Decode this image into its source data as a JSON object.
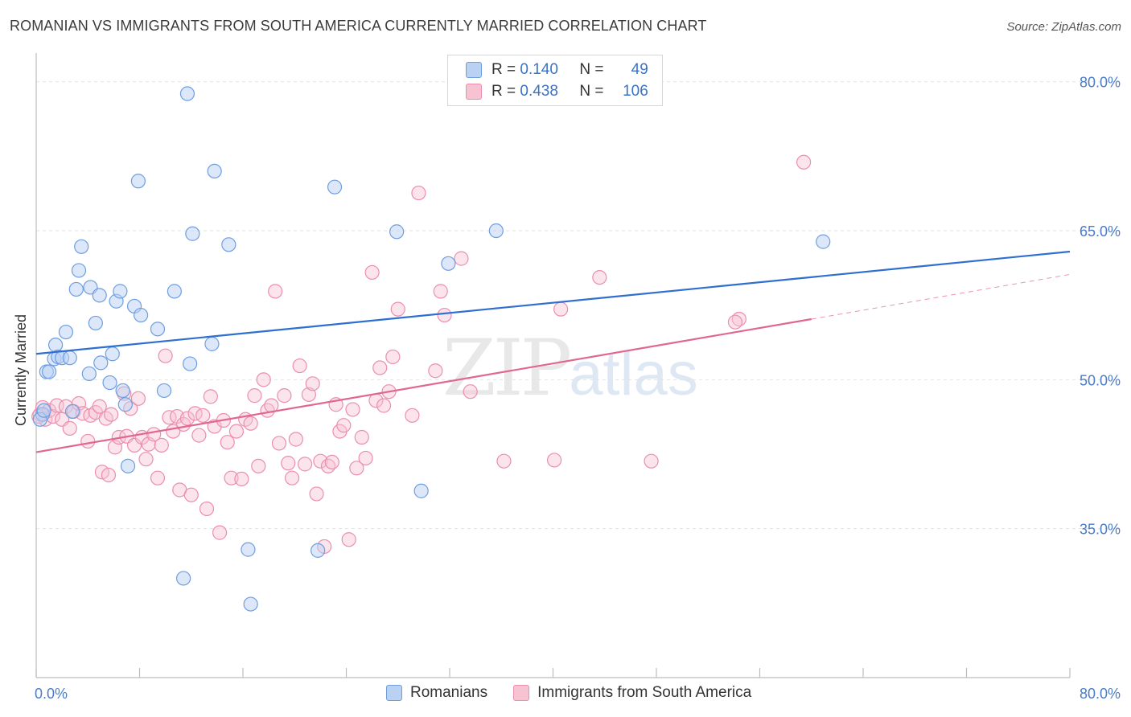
{
  "title": "ROMANIAN VS IMMIGRANTS FROM SOUTH AMERICA CURRENTLY MARRIED CORRELATION CHART",
  "source": "Source: ZipAtlas.com",
  "watermark": {
    "zip": "ZIP",
    "atlas": "atlas"
  },
  "legend": {
    "r_label": "R =",
    "n_label": "N =",
    "rows": [
      {
        "r": "0.140",
        "n": "49"
      },
      {
        "r": "0.438",
        "n": "106"
      }
    ]
  },
  "colors": {
    "blue_fill": "#b9d2f3",
    "blue_stroke": "#6f9ee0",
    "blue_line": "#2f6fd0",
    "pink_fill": "#f7c3d3",
    "pink_stroke": "#ea8fae",
    "pink_line": "#e06890",
    "tick_label": "#4a7cc9",
    "grid": "#e2e2e2"
  },
  "chart_data": {
    "type": "scatter",
    "title": "ROMANIAN VS IMMIGRANTS FROM SOUTH AMERICA CURRENTLY MARRIED CORRELATION CHART",
    "xlabel": "",
    "ylabel": "Currently Married",
    "xlim": [
      0,
      80
    ],
    "ylim": [
      20,
      82
    ],
    "x_tick_labels": [
      "0.0%",
      "80.0%"
    ],
    "y_ticks": [
      35,
      50,
      65,
      80
    ],
    "y_tick_labels": [
      "35.0%",
      "50.0%",
      "65.0%",
      "80.0%"
    ],
    "grid": true,
    "legend_position": "top-center",
    "series": [
      {
        "name": "Romanians",
        "color": "#6f9ee0",
        "trend": {
          "x0": 0,
          "y0": 52.6,
          "x1": 80,
          "y1": 62.9
        },
        "points": [
          [
            0.5,
            46.5
          ],
          [
            0.8,
            50.8
          ],
          [
            1.0,
            50.8
          ],
          [
            1.4,
            52.1
          ],
          [
            1.5,
            53.5
          ],
          [
            1.7,
            52.3
          ],
          [
            2.0,
            52.2
          ],
          [
            2.3,
            54.8
          ],
          [
            2.6,
            52.2
          ],
          [
            2.8,
            46.8
          ],
          [
            3.1,
            59.1
          ],
          [
            3.3,
            61.0
          ],
          [
            3.5,
            63.4
          ],
          [
            4.1,
            50.6
          ],
          [
            4.2,
            59.3
          ],
          [
            4.6,
            55.7
          ],
          [
            4.9,
            58.5
          ],
          [
            5.0,
            51.7
          ],
          [
            5.7,
            49.7
          ],
          [
            5.9,
            52.6
          ],
          [
            6.2,
            57.9
          ],
          [
            6.5,
            58.9
          ],
          [
            6.7,
            48.9
          ],
          [
            6.9,
            47.5
          ],
          [
            7.1,
            41.3
          ],
          [
            7.6,
            57.4
          ],
          [
            7.9,
            70.0
          ],
          [
            8.1,
            56.5
          ],
          [
            9.4,
            55.1
          ],
          [
            9.9,
            48.9
          ],
          [
            10.7,
            58.9
          ],
          [
            11.7,
            78.8
          ],
          [
            11.9,
            51.6
          ],
          [
            12.1,
            64.7
          ],
          [
            13.6,
            53.6
          ],
          [
            13.8,
            71.0
          ],
          [
            14.9,
            63.6
          ],
          [
            16.4,
            32.9
          ],
          [
            16.6,
            27.4
          ],
          [
            11.4,
            30.0
          ],
          [
            21.8,
            32.8
          ],
          [
            23.1,
            69.4
          ],
          [
            27.9,
            64.9
          ],
          [
            29.8,
            38.8
          ],
          [
            31.9,
            61.7
          ],
          [
            35.6,
            65.0
          ],
          [
            60.9,
            63.9
          ],
          [
            0.3,
            46.0
          ],
          [
            0.6,
            46.9
          ]
        ]
      },
      {
        "name": "Immigrants from South America",
        "color": "#ea8fae",
        "trend": {
          "x0": 0,
          "y0": 42.7,
          "x1": 60,
          "y1": 56.1
        },
        "trend_dashed": {
          "x0": 60,
          "y0": 56.1,
          "x1": 80,
          "y1": 60.6
        },
        "points": [
          [
            0.3,
            46.5
          ],
          [
            0.5,
            47.2
          ],
          [
            0.7,
            46.0
          ],
          [
            1.0,
            46.9
          ],
          [
            1.3,
            46.3
          ],
          [
            1.6,
            47.4
          ],
          [
            2.0,
            46.0
          ],
          [
            2.3,
            47.3
          ],
          [
            2.6,
            45.1
          ],
          [
            2.9,
            46.8
          ],
          [
            3.3,
            47.6
          ],
          [
            3.6,
            46.6
          ],
          [
            4.0,
            43.8
          ],
          [
            4.2,
            46.4
          ],
          [
            4.6,
            46.7
          ],
          [
            4.9,
            47.3
          ],
          [
            5.1,
            40.7
          ],
          [
            5.4,
            46.1
          ],
          [
            5.6,
            40.4
          ],
          [
            5.8,
            46.5
          ],
          [
            6.1,
            43.2
          ],
          [
            6.4,
            44.2
          ],
          [
            6.8,
            48.6
          ],
          [
            7.0,
            44.3
          ],
          [
            7.3,
            47.1
          ],
          [
            7.6,
            43.4
          ],
          [
            7.9,
            48.1
          ],
          [
            8.2,
            44.2
          ],
          [
            8.5,
            42.0
          ],
          [
            8.7,
            43.5
          ],
          [
            9.1,
            44.5
          ],
          [
            9.4,
            40.1
          ],
          [
            9.7,
            43.4
          ],
          [
            10.0,
            52.4
          ],
          [
            10.3,
            46.2
          ],
          [
            10.6,
            44.8
          ],
          [
            10.9,
            46.3
          ],
          [
            11.1,
            38.9
          ],
          [
            11.4,
            45.5
          ],
          [
            11.7,
            46.1
          ],
          [
            12.0,
            38.4
          ],
          [
            12.3,
            46.6
          ],
          [
            12.6,
            44.4
          ],
          [
            12.9,
            46.4
          ],
          [
            13.2,
            37.0
          ],
          [
            13.5,
            48.3
          ],
          [
            13.8,
            45.3
          ],
          [
            14.2,
            34.6
          ],
          [
            14.5,
            45.9
          ],
          [
            14.8,
            43.7
          ],
          [
            15.1,
            40.1
          ],
          [
            15.5,
            44.8
          ],
          [
            15.9,
            40.0
          ],
          [
            16.2,
            46.0
          ],
          [
            16.6,
            45.6
          ],
          [
            16.9,
            48.4
          ],
          [
            17.2,
            41.3
          ],
          [
            17.6,
            50.0
          ],
          [
            17.9,
            46.9
          ],
          [
            18.2,
            47.4
          ],
          [
            18.5,
            58.9
          ],
          [
            18.8,
            43.6
          ],
          [
            19.2,
            48.4
          ],
          [
            19.5,
            41.6
          ],
          [
            19.8,
            40.1
          ],
          [
            20.1,
            44.0
          ],
          [
            20.4,
            51.4
          ],
          [
            20.8,
            41.5
          ],
          [
            21.1,
            48.5
          ],
          [
            21.4,
            49.6
          ],
          [
            21.7,
            38.5
          ],
          [
            22.0,
            41.8
          ],
          [
            22.3,
            33.2
          ],
          [
            22.6,
            41.3
          ],
          [
            22.9,
            41.7
          ],
          [
            23.2,
            47.5
          ],
          [
            23.5,
            44.8
          ],
          [
            23.8,
            45.4
          ],
          [
            24.2,
            33.9
          ],
          [
            24.5,
            47.0
          ],
          [
            24.8,
            41.1
          ],
          [
            25.2,
            44.2
          ],
          [
            25.5,
            42.1
          ],
          [
            26.0,
            60.8
          ],
          [
            26.3,
            47.9
          ],
          [
            26.6,
            51.2
          ],
          [
            26.9,
            47.4
          ],
          [
            27.3,
            48.8
          ],
          [
            27.6,
            52.3
          ],
          [
            28.0,
            57.1
          ],
          [
            29.1,
            46.4
          ],
          [
            29.6,
            68.8
          ],
          [
            30.9,
            50.9
          ],
          [
            31.3,
            58.9
          ],
          [
            31.6,
            56.5
          ],
          [
            32.9,
            62.2
          ],
          [
            33.6,
            48.8
          ],
          [
            36.2,
            41.8
          ],
          [
            40.1,
            41.9
          ],
          [
            40.6,
            57.1
          ],
          [
            43.6,
            60.3
          ],
          [
            47.6,
            41.8
          ],
          [
            54.4,
            56.1
          ],
          [
            54.1,
            55.8
          ],
          [
            59.4,
            71.9
          ],
          [
            0.2,
            46.3
          ]
        ]
      }
    ]
  }
}
